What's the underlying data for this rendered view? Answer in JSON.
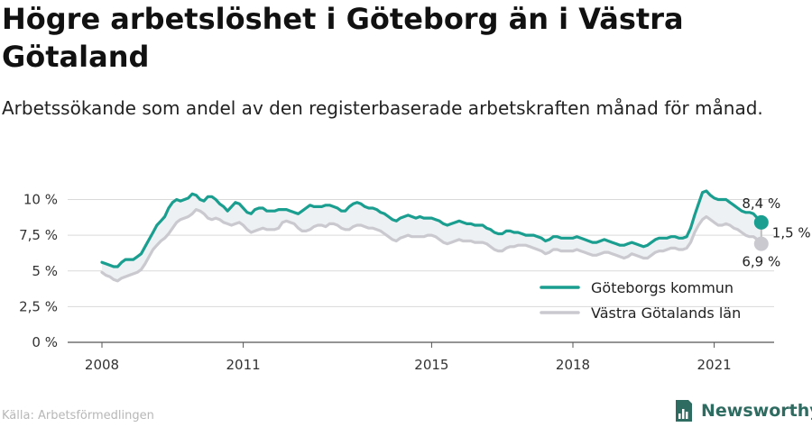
{
  "title": "Högre arbetslöshet i Göteborg än i Västra Götaland",
  "subtitle": "Arbetssökande som andel av den registerbaserade arbetskraften månad för månad.",
  "source": "Källa: Arbetsförmedlingen",
  "brand": {
    "name": "Newsworthy",
    "icon": "newsworthy-logo-icon",
    "color": "#2e6b60"
  },
  "chart_data": {
    "type": "line",
    "x_start": "2008-01",
    "frequency": "monthly",
    "ylim": [
      0,
      10.5
    ],
    "y_ticks": [
      0,
      2.5,
      5,
      7.5,
      10
    ],
    "y_tick_labels": [
      "0 %",
      "2,5 %",
      "5 %",
      "7,5 %",
      "10 %"
    ],
    "x_ticks": [
      2008,
      2011,
      2015,
      2018,
      2021
    ],
    "x_tick_labels": [
      "2008",
      "2011",
      "2015",
      "2018",
      "2021"
    ],
    "grid": "horizontal",
    "legend_position": "bottom-right",
    "series": [
      {
        "name": "Göteborgs kommun",
        "color": "#1a9e8f",
        "values": [
          5.6,
          5.5,
          5.4,
          5.3,
          5.3,
          5.6,
          5.8,
          5.8,
          5.8,
          6.0,
          6.2,
          6.7,
          7.2,
          7.7,
          8.2,
          8.5,
          8.8,
          9.4,
          9.8,
          10.0,
          9.9,
          10.0,
          10.1,
          10.4,
          10.3,
          10.0,
          9.9,
          10.2,
          10.2,
          10.0,
          9.7,
          9.5,
          9.2,
          9.5,
          9.8,
          9.7,
          9.4,
          9.1,
          9.0,
          9.3,
          9.4,
          9.4,
          9.2,
          9.2,
          9.2,
          9.3,
          9.3,
          9.3,
          9.2,
          9.1,
          9.0,
          9.2,
          9.4,
          9.6,
          9.5,
          9.5,
          9.5,
          9.6,
          9.6,
          9.5,
          9.4,
          9.2,
          9.2,
          9.5,
          9.7,
          9.8,
          9.7,
          9.5,
          9.4,
          9.4,
          9.3,
          9.1,
          9.0,
          8.8,
          8.6,
          8.5,
          8.7,
          8.8,
          8.9,
          8.8,
          8.7,
          8.8,
          8.7,
          8.7,
          8.7,
          8.6,
          8.5,
          8.3,
          8.2,
          8.3,
          8.4,
          8.5,
          8.4,
          8.3,
          8.3,
          8.2,
          8.2,
          8.2,
          8.0,
          7.9,
          7.7,
          7.6,
          7.6,
          7.8,
          7.8,
          7.7,
          7.7,
          7.6,
          7.5,
          7.5,
          7.5,
          7.4,
          7.3,
          7.1,
          7.2,
          7.4,
          7.4,
          7.3,
          7.3,
          7.3,
          7.3,
          7.4,
          7.3,
          7.2,
          7.1,
          7.0,
          7.0,
          7.1,
          7.2,
          7.1,
          7.0,
          6.9,
          6.8,
          6.8,
          6.9,
          7.0,
          6.9,
          6.8,
          6.7,
          6.8,
          7.0,
          7.2,
          7.3,
          7.3,
          7.3,
          7.4,
          7.4,
          7.3,
          7.3,
          7.4,
          8.0,
          8.9,
          9.7,
          10.5,
          10.6,
          10.3,
          10.1,
          10.0,
          10.0,
          10.0,
          9.8,
          9.6,
          9.4,
          9.2,
          9.1,
          9.1,
          9.0,
          8.7,
          8.4
        ]
      },
      {
        "name": "Västra Götalands län",
        "color": "#c9c9cf",
        "values": [
          4.9,
          4.7,
          4.6,
          4.4,
          4.3,
          4.5,
          4.6,
          4.7,
          4.8,
          4.9,
          5.1,
          5.5,
          6.0,
          6.5,
          6.8,
          7.1,
          7.3,
          7.6,
          8.0,
          8.4,
          8.6,
          8.7,
          8.8,
          9.0,
          9.3,
          9.2,
          9.0,
          8.7,
          8.6,
          8.7,
          8.6,
          8.4,
          8.3,
          8.2,
          8.3,
          8.4,
          8.2,
          7.9,
          7.7,
          7.8,
          7.9,
          8.0,
          7.9,
          7.9,
          7.9,
          8.0,
          8.4,
          8.5,
          8.4,
          8.3,
          8.0,
          7.8,
          7.8,
          7.9,
          8.1,
          8.2,
          8.2,
          8.1,
          8.3,
          8.3,
          8.2,
          8.0,
          7.9,
          7.9,
          8.1,
          8.2,
          8.2,
          8.1,
          8.0,
          8.0,
          7.9,
          7.8,
          7.6,
          7.4,
          7.2,
          7.1,
          7.3,
          7.4,
          7.5,
          7.4,
          7.4,
          7.4,
          7.4,
          7.5,
          7.5,
          7.4,
          7.2,
          7.0,
          6.9,
          7.0,
          7.1,
          7.2,
          7.1,
          7.1,
          7.1,
          7.0,
          7.0,
          7.0,
          6.9,
          6.7,
          6.5,
          6.4,
          6.4,
          6.6,
          6.7,
          6.7,
          6.8,
          6.8,
          6.8,
          6.7,
          6.6,
          6.5,
          6.4,
          6.2,
          6.3,
          6.5,
          6.5,
          6.4,
          6.4,
          6.4,
          6.4,
          6.5,
          6.4,
          6.3,
          6.2,
          6.1,
          6.1,
          6.2,
          6.3,
          6.3,
          6.2,
          6.1,
          6.0,
          5.9,
          6.0,
          6.2,
          6.1,
          6.0,
          5.9,
          5.9,
          6.1,
          6.3,
          6.4,
          6.4,
          6.5,
          6.6,
          6.6,
          6.5,
          6.5,
          6.6,
          7.0,
          7.7,
          8.2,
          8.6,
          8.8,
          8.6,
          8.4,
          8.2,
          8.2,
          8.3,
          8.2,
          8.0,
          7.9,
          7.7,
          7.5,
          7.4,
          7.4,
          7.2,
          6.9
        ]
      }
    ],
    "end_labels": {
      "top": "8,4 %",
      "bottom": "6,9 %",
      "difference": "1,5 %"
    }
  }
}
